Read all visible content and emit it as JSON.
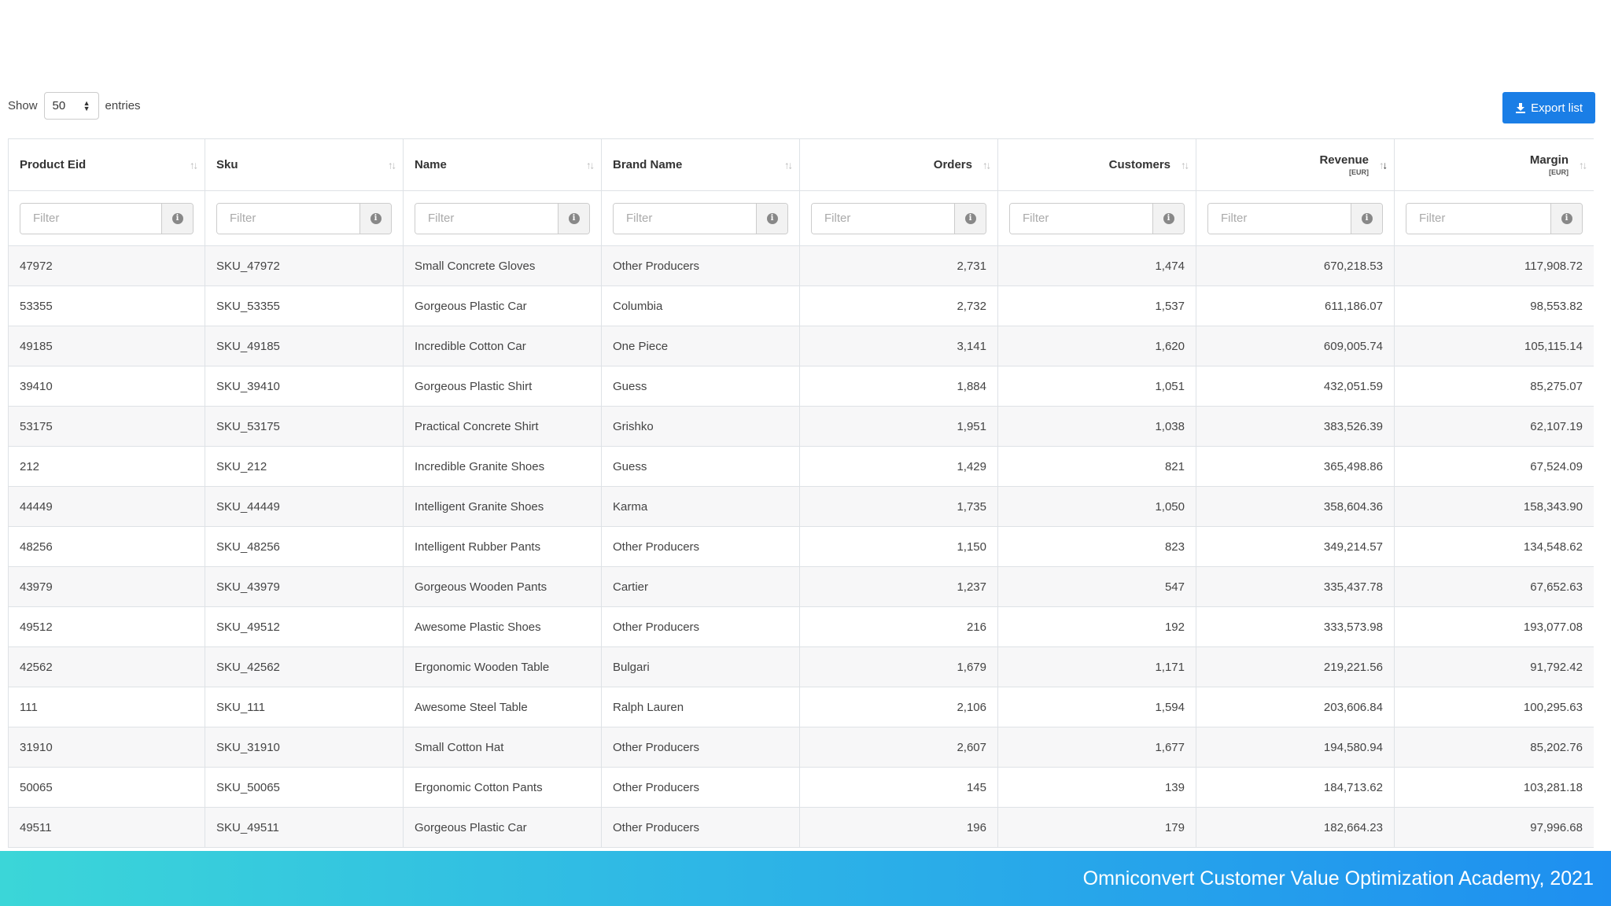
{
  "controls": {
    "show_label": "Show",
    "page_size": "50",
    "entries_label": "entries",
    "export_label": "Export list"
  },
  "columns": [
    {
      "key": "eid",
      "label": "Product Eid",
      "unit": "",
      "align": "left",
      "sort": "none"
    },
    {
      "key": "sku",
      "label": "Sku",
      "unit": "",
      "align": "left",
      "sort": "none"
    },
    {
      "key": "name",
      "label": "Name",
      "unit": "",
      "align": "left",
      "sort": "none"
    },
    {
      "key": "brand",
      "label": "Brand Name",
      "unit": "",
      "align": "left",
      "sort": "none"
    },
    {
      "key": "orders",
      "label": "Orders",
      "unit": "",
      "align": "right",
      "sort": "none"
    },
    {
      "key": "customers",
      "label": "Customers",
      "unit": "",
      "align": "right",
      "sort": "none"
    },
    {
      "key": "revenue",
      "label": "Revenue",
      "unit": "[EUR]",
      "align": "right",
      "sort": "desc"
    },
    {
      "key": "margin",
      "label": "Margin",
      "unit": "[EUR]",
      "align": "right",
      "sort": "none"
    }
  ],
  "filter_placeholder": "Filter",
  "rows": [
    {
      "eid": "47972",
      "sku": "SKU_47972",
      "name": "Small Concrete Gloves",
      "brand": "Other Producers",
      "orders": "2,731",
      "customers": "1,474",
      "revenue": "670,218.53",
      "margin": "117,908.72"
    },
    {
      "eid": "53355",
      "sku": "SKU_53355",
      "name": "Gorgeous Plastic Car",
      "brand": "Columbia",
      "orders": "2,732",
      "customers": "1,537",
      "revenue": "611,186.07",
      "margin": "98,553.82"
    },
    {
      "eid": "49185",
      "sku": "SKU_49185",
      "name": "Incredible Cotton Car",
      "brand": "One Piece",
      "orders": "3,141",
      "customers": "1,620",
      "revenue": "609,005.74",
      "margin": "105,115.14"
    },
    {
      "eid": "39410",
      "sku": "SKU_39410",
      "name": "Gorgeous Plastic Shirt",
      "brand": "Guess",
      "orders": "1,884",
      "customers": "1,051",
      "revenue": "432,051.59",
      "margin": "85,275.07"
    },
    {
      "eid": "53175",
      "sku": "SKU_53175",
      "name": "Practical Concrete Shirt",
      "brand": "Grishko",
      "orders": "1,951",
      "customers": "1,038",
      "revenue": "383,526.39",
      "margin": "62,107.19"
    },
    {
      "eid": "212",
      "sku": "SKU_212",
      "name": "Incredible Granite Shoes",
      "brand": "Guess",
      "orders": "1,429",
      "customers": "821",
      "revenue": "365,498.86",
      "margin": "67,524.09"
    },
    {
      "eid": "44449",
      "sku": "SKU_44449",
      "name": "Intelligent Granite Shoes",
      "brand": "Karma",
      "orders": "1,735",
      "customers": "1,050",
      "revenue": "358,604.36",
      "margin": "158,343.90"
    },
    {
      "eid": "48256",
      "sku": "SKU_48256",
      "name": "Intelligent Rubber Pants",
      "brand": "Other Producers",
      "orders": "1,150",
      "customers": "823",
      "revenue": "349,214.57",
      "margin": "134,548.62"
    },
    {
      "eid": "43979",
      "sku": "SKU_43979",
      "name": "Gorgeous Wooden Pants",
      "brand": "Cartier",
      "orders": "1,237",
      "customers": "547",
      "revenue": "335,437.78",
      "margin": "67,652.63"
    },
    {
      "eid": "49512",
      "sku": "SKU_49512",
      "name": "Awesome Plastic Shoes",
      "brand": "Other Producers",
      "orders": "216",
      "customers": "192",
      "revenue": "333,573.98",
      "margin": "193,077.08"
    },
    {
      "eid": "42562",
      "sku": "SKU_42562",
      "name": "Ergonomic Wooden Table",
      "brand": "Bulgari",
      "orders": "1,679",
      "customers": "1,171",
      "revenue": "219,221.56",
      "margin": "91,792.42"
    },
    {
      "eid": "111",
      "sku": "SKU_111",
      "name": "Awesome Steel Table",
      "brand": "Ralph Lauren",
      "orders": "2,106",
      "customers": "1,594",
      "revenue": "203,606.84",
      "margin": "100,295.63"
    },
    {
      "eid": "31910",
      "sku": "SKU_31910",
      "name": "Small Cotton Hat",
      "brand": "Other Producers",
      "orders": "2,607",
      "customers": "1,677",
      "revenue": "194,580.94",
      "margin": "85,202.76"
    },
    {
      "eid": "50065",
      "sku": "SKU_50065",
      "name": "Ergonomic Cotton Pants",
      "brand": "Other Producers",
      "orders": "145",
      "customers": "139",
      "revenue": "184,713.62",
      "margin": "103,281.18"
    },
    {
      "eid": "49511",
      "sku": "SKU_49511",
      "name": "Gorgeous Plastic Car",
      "brand": "Other Producers",
      "orders": "196",
      "customers": "179",
      "revenue": "182,664.23",
      "margin": "97,996.68"
    }
  ],
  "banner": {
    "text": "Omniconvert Customer Value Optimization Academy, 2021"
  },
  "colors": {
    "primary_button": "#1a7ee6",
    "banner_start": "#3bd6d8",
    "banner_end": "#1e8ff0"
  },
  "icons": {
    "export": "download-icon",
    "sort": "sort-icon",
    "filter_info": "info-icon"
  }
}
